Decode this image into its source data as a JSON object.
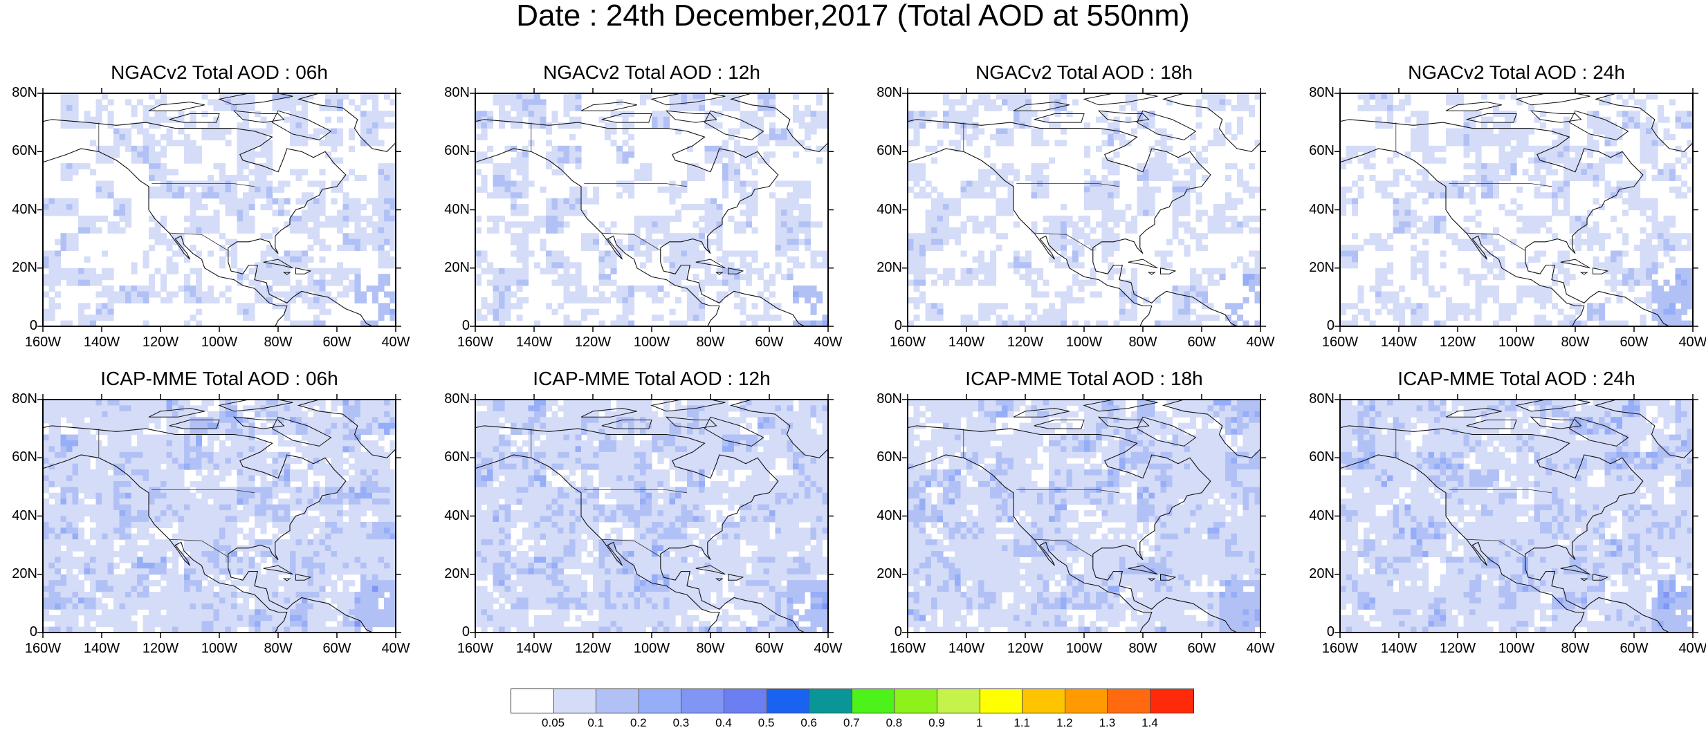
{
  "title": "Date : 24th December,2017 (Total AOD at 550nm)",
  "panels": [
    {
      "title": "NGACv2 Total AOD : 06h",
      "model": "NGACv2",
      "hour": "06h"
    },
    {
      "title": "NGACv2 Total AOD : 12h",
      "model": "NGACv2",
      "hour": "12h"
    },
    {
      "title": "NGACv2 Total AOD : 18h",
      "model": "NGACv2",
      "hour": "18h"
    },
    {
      "title": "NGACv2 Total AOD : 24h",
      "model": "NGACv2",
      "hour": "24h"
    },
    {
      "title": "ICAP-MME Total AOD : 06h",
      "model": "ICAP-MME",
      "hour": "06h"
    },
    {
      "title": "ICAP-MME Total AOD : 12h",
      "model": "ICAP-MME",
      "hour": "12h"
    },
    {
      "title": "ICAP-MME Total AOD : 18h",
      "model": "ICAP-MME",
      "hour": "18h"
    },
    {
      "title": "ICAP-MME Total AOD : 24h",
      "model": "ICAP-MME",
      "hour": "24h"
    }
  ],
  "axes": {
    "lon_labels": [
      "160W",
      "140W",
      "120W",
      "100W",
      "80W",
      "60W",
      "40W"
    ],
    "lat_labels": [
      "80N",
      "60N",
      "40N",
      "20N",
      "0"
    ],
    "lon_range": [
      -160,
      -40
    ],
    "lat_range": [
      0,
      80
    ]
  },
  "colorbar": {
    "labels": [
      "0.05",
      "0.1",
      "0.2",
      "0.3",
      "0.4",
      "0.5",
      "0.6",
      "0.7",
      "0.8",
      "0.9",
      "1",
      "1.1",
      "1.2",
      "1.3",
      "1.4"
    ],
    "colors": [
      "#ffffff",
      "#d4dcf8",
      "#b2c1f5",
      "#96aef7",
      "#8195f5",
      "#6b7ff2",
      "#1a63f0",
      "#0a9696",
      "#4cf21a",
      "#8cf21a",
      "#c6f24c",
      "#ffff00",
      "#ffc400",
      "#ff9a00",
      "#ff6a10",
      "#ff2a0a"
    ]
  }
}
